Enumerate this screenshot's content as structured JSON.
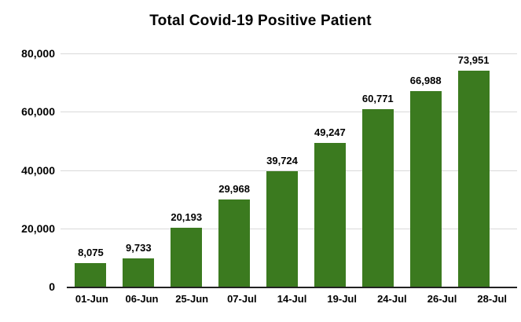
{
  "title": "Total Covid-19 Positive Patient",
  "colors": {
    "bar": "#3b7a1f",
    "gridline": "#d9d9d9",
    "axis_line": "#222222",
    "text": "#000000",
    "background": "#ffffff"
  },
  "chart_data": {
    "type": "bar",
    "title": "Total Covid-19 Positive Patient",
    "categories": [
      "01-Jun",
      "06-Jun",
      "25-Jun",
      "07-Jul",
      "14-Jul",
      "19-Jul",
      "24-Jul",
      "26-Jul",
      "28-Jul"
    ],
    "values": [
      8075,
      9733,
      20193,
      29968,
      39724,
      49247,
      60771,
      66988,
      73951
    ],
    "value_labels": [
      "8,075",
      "9,733",
      "20,193",
      "29,968",
      "39,724",
      "49,247",
      "60,771",
      "66,988",
      "73,951"
    ],
    "xlabel": "",
    "ylabel": "",
    "ylim": [
      0,
      80000
    ],
    "yticks": [
      0,
      20000,
      40000,
      60000,
      80000
    ],
    "ytick_labels": [
      "0",
      "20,000",
      "40,000",
      "60,000",
      "80,000"
    ],
    "grid": "horizontal",
    "legend": "none",
    "bar_color": "#3b7a1f"
  }
}
